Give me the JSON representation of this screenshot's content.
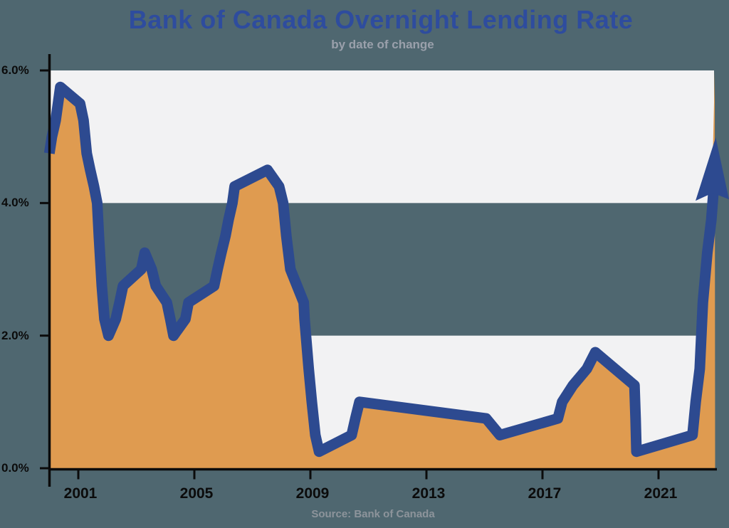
{
  "header": {
    "title": "Bank of Canada Overnight Lending Rate",
    "subtitle": "by date of change"
  },
  "footer": {
    "source": "Source: Bank of Canada"
  },
  "colors": {
    "background_slate": "#4f6770",
    "band_light": "#f2f2f3",
    "area_orange": "#df9b50",
    "line_blue": "#2d4a90",
    "title_blue": "#2e4c9e",
    "subtitle_gray": "#9aa0ab",
    "source_gray": "#8d949b",
    "axis_black": "#0b0b0b"
  },
  "chart_data": {
    "type": "area",
    "title": "Bank of Canada Overnight Lending Rate",
    "subtitle": "by date of change",
    "source": "Source: Bank of Canada",
    "xlabel": "",
    "ylabel": "",
    "x_range": [
      2000.0,
      2022.95
    ],
    "ylim": [
      0,
      6
    ],
    "grid": "alternating horizontal bands: 4-6% light, 2-4% background, 0-2% light",
    "legend": "none",
    "y_ticks": [
      {
        "value": 0,
        "label": "0.0%"
      },
      {
        "value": 2,
        "label": "2.0%"
      },
      {
        "value": 4,
        "label": "4.0%"
      },
      {
        "value": 6,
        "label": "6.0%"
      }
    ],
    "x_ticks": [
      {
        "value": 2001,
        "label": "2001"
      },
      {
        "value": 2005,
        "label": "2005"
      },
      {
        "value": 2009,
        "label": "2009"
      },
      {
        "value": 2013,
        "label": "2013"
      },
      {
        "value": 2017,
        "label": "2017"
      },
      {
        "value": 2021,
        "label": "2021"
      }
    ],
    "series": [
      {
        "name": "overnight-lending-rate-percent",
        "points": [
          [
            2000.0,
            4.75
          ],
          [
            2000.09,
            5.0
          ],
          [
            2000.22,
            5.25
          ],
          [
            2000.38,
            5.75
          ],
          [
            2001.06,
            5.5
          ],
          [
            2001.18,
            5.25
          ],
          [
            2001.29,
            4.75
          ],
          [
            2001.41,
            4.5
          ],
          [
            2001.54,
            4.25
          ],
          [
            2001.65,
            4.0
          ],
          [
            2001.71,
            3.5
          ],
          [
            2001.81,
            2.75
          ],
          [
            2001.9,
            2.25
          ],
          [
            2002.04,
            2.0
          ],
          [
            2002.29,
            2.25
          ],
          [
            2002.42,
            2.5
          ],
          [
            2002.54,
            2.75
          ],
          [
            2003.17,
            3.0
          ],
          [
            2003.29,
            3.25
          ],
          [
            2003.53,
            3.0
          ],
          [
            2003.67,
            2.75
          ],
          [
            2004.05,
            2.5
          ],
          [
            2004.17,
            2.25
          ],
          [
            2004.28,
            2.0
          ],
          [
            2004.69,
            2.25
          ],
          [
            2004.8,
            2.5
          ],
          [
            2005.68,
            2.75
          ],
          [
            2005.8,
            3.0
          ],
          [
            2005.93,
            3.25
          ],
          [
            2006.07,
            3.5
          ],
          [
            2006.18,
            3.75
          ],
          [
            2006.31,
            4.0
          ],
          [
            2006.39,
            4.25
          ],
          [
            2007.52,
            4.5
          ],
          [
            2007.92,
            4.25
          ],
          [
            2008.06,
            4.0
          ],
          [
            2008.17,
            3.5
          ],
          [
            2008.31,
            3.0
          ],
          [
            2008.77,
            2.5
          ],
          [
            2008.8,
            2.25
          ],
          [
            2008.94,
            1.5
          ],
          [
            2009.05,
            1.0
          ],
          [
            2009.17,
            0.5
          ],
          [
            2009.3,
            0.25
          ],
          [
            2010.42,
            0.5
          ],
          [
            2010.55,
            0.75
          ],
          [
            2010.69,
            1.0
          ],
          [
            2015.06,
            0.75
          ],
          [
            2015.53,
            0.5
          ],
          [
            2017.53,
            0.75
          ],
          [
            2017.68,
            1.0
          ],
          [
            2018.05,
            1.25
          ],
          [
            2018.53,
            1.5
          ],
          [
            2018.82,
            1.75
          ],
          [
            2020.17,
            1.25
          ],
          [
            2020.21,
            0.75
          ],
          [
            2020.24,
            0.25
          ],
          [
            2022.17,
            0.5
          ],
          [
            2022.28,
            1.0
          ],
          [
            2022.42,
            1.5
          ],
          [
            2022.53,
            2.5
          ],
          [
            2022.68,
            3.25
          ],
          [
            2022.82,
            3.75
          ]
        ]
      }
    ],
    "annotation": {
      "type": "arrow-up",
      "meaning": "rate rising sharply at right edge of chart (2022 hiking cycle)",
      "shaft_end": [
        2022.9,
        4.2
      ],
      "tip": [
        2022.97,
        4.99
      ]
    }
  }
}
